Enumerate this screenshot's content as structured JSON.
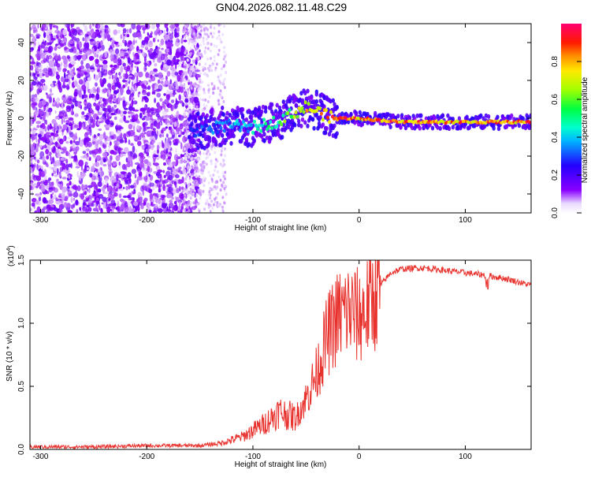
{
  "title": "GN04.2026.082.11.48.C29",
  "chart_data": [
    {
      "type": "heatmap",
      "name": "spectrogram",
      "xlabel": "Height of straight line (km)",
      "ylabel": "Frequency (Hz)",
      "xlim": [
        -310,
        162
      ],
      "ylim": [
        -50,
        50
      ],
      "xticks": [
        -300,
        -200,
        -100,
        0,
        100
      ],
      "xtick_labels": [
        "-300",
        "-200",
        "-100",
        "0",
        "100"
      ],
      "yticks": [
        -40,
        -20,
        0,
        20,
        40
      ],
      "ytick_labels": [
        "-40",
        "-20",
        "0",
        "20",
        "40"
      ],
      "colorbar": {
        "label": "Normalized spectral amplitude",
        "range": [
          0,
          1
        ],
        "ticks": [
          0.0,
          0.2,
          0.4,
          0.6,
          0.8
        ],
        "tick_labels": [
          "0.0",
          "0.2",
          "0.4",
          "0.6",
          "0.8"
        ]
      },
      "ridge": {
        "x": [
          -160,
          -140,
          -120,
          -100,
          -80,
          -60,
          -50,
          -40,
          -30,
          -20,
          0,
          40,
          80,
          120,
          162
        ],
        "frequency": [
          -8,
          -5,
          -4,
          -5,
          -2,
          3,
          6,
          4,
          1,
          0,
          0,
          -2,
          -2,
          -2,
          -2
        ],
        "amplitude": [
          0.3,
          0.35,
          0.4,
          0.45,
          0.55,
          0.7,
          0.85,
          0.8,
          0.9,
          0.95,
          0.9,
          0.95,
          0.9,
          0.9,
          0.9
        ]
      }
    },
    {
      "type": "line",
      "name": "snr",
      "xlabel": "Height of straight line (km)",
      "ylabel": "SNR (10 * v/v)",
      "yscale_label": "(x10",
      "yscale_exp": "4",
      "yscale_close": ")",
      "xlim": [
        -310,
        162
      ],
      "ylim": [
        0,
        1.5
      ],
      "xticks": [
        -300,
        -200,
        -100,
        0,
        100
      ],
      "xtick_labels": [
        "-300",
        "-200",
        "-100",
        "0",
        "100"
      ],
      "yticks": [
        0,
        0.5,
        1.0,
        1.5
      ],
      "ytick_labels": [
        "0.0",
        "0.5",
        "1.0",
        "1.5"
      ],
      "series": [
        {
          "name": "SNR",
          "color": "#e8322e",
          "x": [
            -310,
            -250,
            -200,
            -150,
            -130,
            -110,
            -90,
            -75,
            -60,
            -50,
            -40,
            -30,
            -20,
            -10,
            0,
            10,
            20,
            30,
            40,
            60,
            80,
            100,
            120,
            140,
            162
          ],
          "y": [
            0.02,
            0.02,
            0.03,
            0.03,
            0.05,
            0.1,
            0.2,
            0.3,
            0.25,
            0.4,
            0.6,
            0.9,
            1.05,
            1.1,
            1.05,
            1.15,
            1.3,
            1.4,
            1.43,
            1.44,
            1.42,
            1.4,
            1.38,
            1.35,
            1.3
          ]
        }
      ]
    }
  ]
}
